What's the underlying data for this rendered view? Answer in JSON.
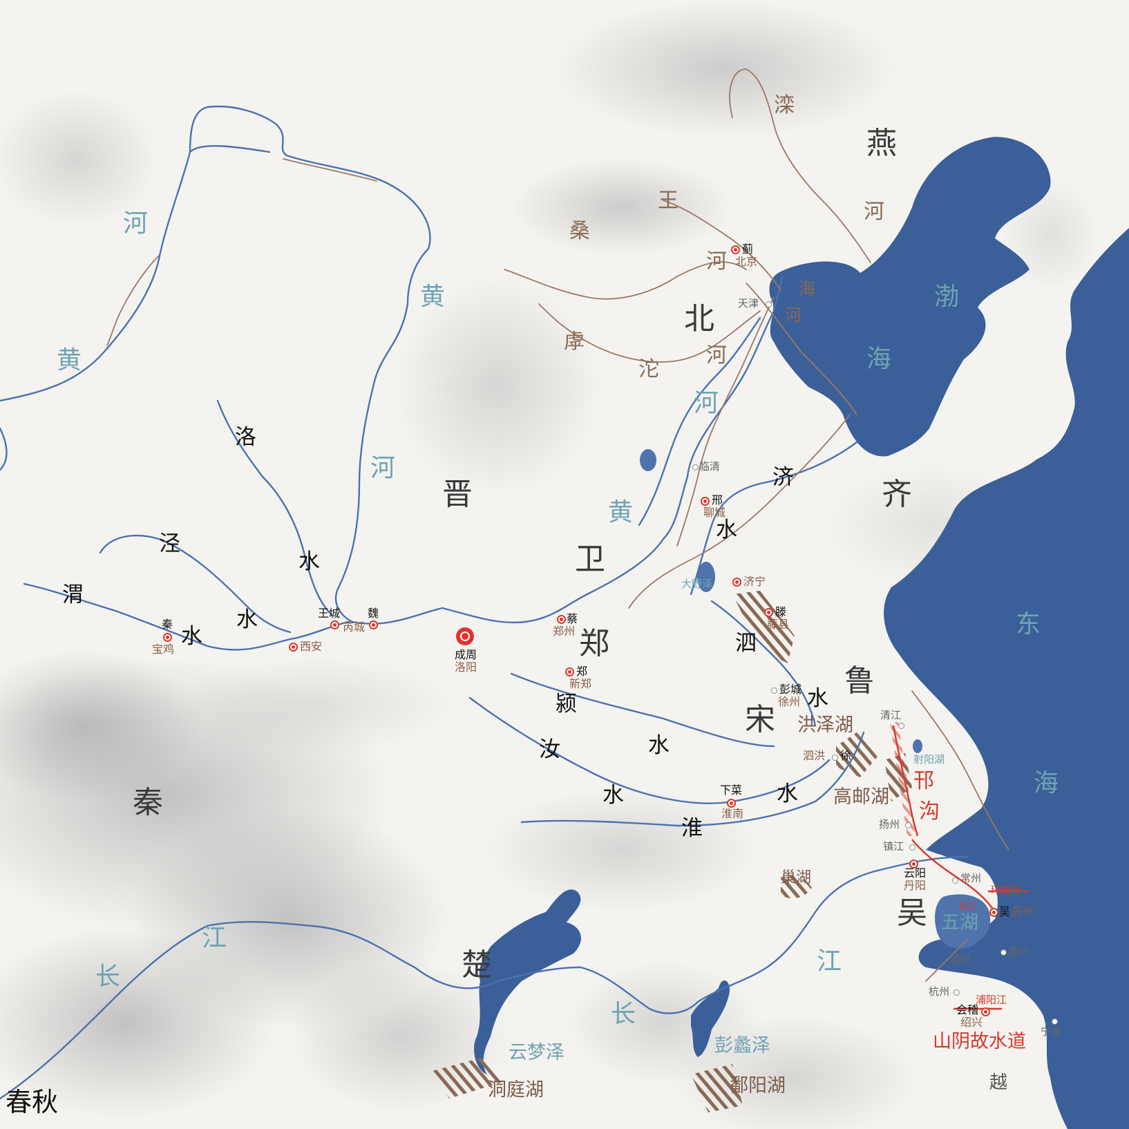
{
  "colors": {
    "sea": "#3b5f99",
    "river": "#4a72b0",
    "tributary": "#9a7865",
    "canal": "#d63a2c",
    "land": "#f4f3f0",
    "water_text": "#6fa3b3"
  },
  "era": "春秋",
  "states": {
    "yan": "燕",
    "jin": "晋",
    "wei": "卫",
    "qi": "齐",
    "zheng": "郑",
    "lu": "鲁",
    "song": "宋",
    "qin": "秦",
    "chu": "楚",
    "wu": "吴",
    "yue": "越"
  },
  "water": {
    "huanghe_nw": [
      "黄",
      "河"
    ],
    "huanghe_mid": [
      "黄",
      "河"
    ],
    "huanghe_low": [
      "黄",
      "河"
    ],
    "bohai": [
      "渤",
      "海"
    ],
    "donghai": [
      "东",
      "海"
    ],
    "changjiang_w": [
      "长",
      "江"
    ],
    "changjiang_e": [
      "长",
      "江"
    ],
    "yunmeng": "云梦泽",
    "pengli": "彭蠡泽",
    "sheyang": "射阳湖",
    "taihu": "五湖",
    "daye": "大野泽"
  },
  "rivers": {
    "luoshui": [
      "洛",
      "水"
    ],
    "jingshui": "泾",
    "weishui": [
      "渭",
      "水"
    ],
    "weishui2": "水",
    "jishui": [
      "济",
      "水"
    ],
    "sishui": [
      "泗",
      "水"
    ],
    "yingshui": [
      "颍",
      "水"
    ],
    "rushui": [
      "汝",
      "水"
    ],
    "huaishui": [
      "淮",
      "水"
    ]
  },
  "tributaries": {
    "luanhe": [
      "滦",
      "河"
    ],
    "sanggan": [
      "王",
      "桑",
      "河"
    ],
    "hutuo": [
      "虖",
      "沱"
    ],
    "beihe": [
      "北",
      "河"
    ],
    "haihe": [
      "海",
      "河"
    ]
  },
  "lakes": {
    "hongze": "洪泽湖",
    "gaoyou": "高邮湖",
    "chaohu": "巢湖",
    "dongting": "洞庭湖",
    "poyang": "鄱阳湖"
  },
  "canals": {
    "hangou": [
      "邗",
      "沟"
    ],
    "shanyin": "山阴故水道",
    "huancheng": "环城河",
    "songjiang": "松江",
    "puyang": "浦阳江"
  },
  "capital": {
    "ancient": "成周",
    "modern": "洛阳"
  },
  "cities": {
    "ji": {
      "ancient": "蓟",
      "modern": "北京"
    },
    "xing": {
      "ancient": "邢",
      "modern": "聊城"
    },
    "qin": {
      "ancient": "秦",
      "modern": "宝鸡"
    },
    "wangcheng": {
      "ancient": "王城",
      "modern": "芮城"
    },
    "weicity": {
      "ancient": "魏"
    },
    "cai": {
      "ancient": "蔡",
      "modern": "郑州"
    },
    "zhengcity": {
      "ancient": "郑",
      "modern": "新郑"
    },
    "teng": {
      "ancient": "滕",
      "modern": "藤县"
    },
    "xiacai": {
      "ancient": "下菜",
      "modern": "淮南"
    },
    "xu": {
      "ancient": "徐",
      "modern": "泗洪"
    },
    "yunyang": {
      "ancient": "云阳",
      "modern": "丹阳"
    },
    "wucity": {
      "ancient": "吴",
      "modern": "苏州"
    },
    "kuaiji": {
      "ancient": "会稽",
      "modern": "绍兴"
    },
    "pengcheng": {
      "ancient": "彭城",
      "modern": "徐州"
    }
  },
  "modern_cities": {
    "xian": "西安",
    "jining": "济宁",
    "tianjin": "天津",
    "linqing": "临清",
    "qingjiang": "清江",
    "yangzhou": "扬州",
    "zhenjiang": "镇江",
    "changzhou": "常州",
    "huzhou": "湖州",
    "jiaxing": "嘉兴",
    "hangzhou": "杭州",
    "ningbo": "宁波"
  }
}
